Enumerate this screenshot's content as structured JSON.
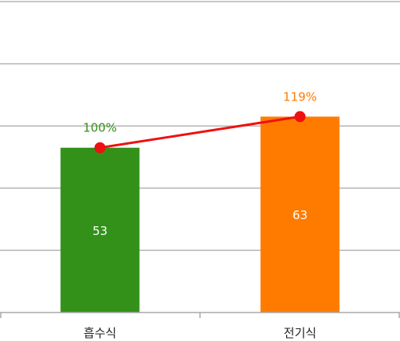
{
  "chart_data": {
    "type": "bar",
    "categories": [
      "흡수식",
      "전기식"
    ],
    "values": [
      53,
      63
    ],
    "bar_colors": [
      "#339119",
      "#ff7b00"
    ],
    "ylim": [
      0,
      100
    ],
    "gridline_step": 20,
    "line_series": {
      "values": [
        100,
        119
      ],
      "labels": [
        "100%",
        "119%"
      ],
      "color": "#ee1111",
      "label_colors": [
        "#339119",
        "#ff7b00"
      ]
    }
  }
}
